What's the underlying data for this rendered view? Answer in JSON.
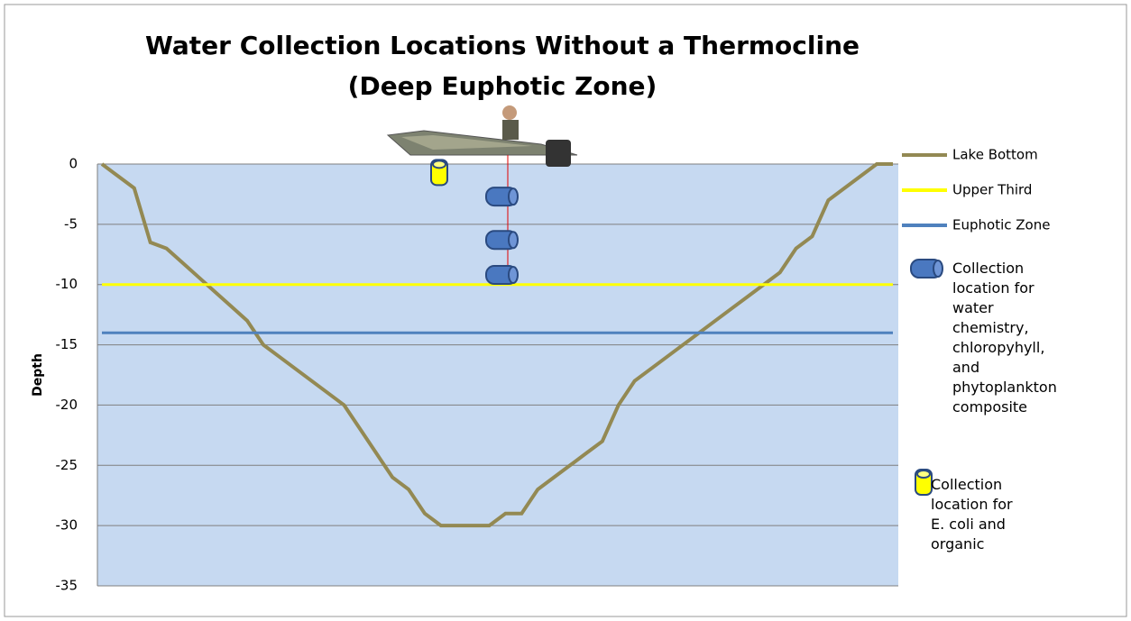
{
  "chart_data": {
    "type": "line",
    "title": [
      "Water Collection Locations Without a Thermocline",
      "(Deep Euphotic Zone)"
    ],
    "y_label": "Depth",
    "categories": [
      null,
      null,
      null,
      null,
      null,
      null,
      null,
      null,
      null,
      null,
      null,
      null,
      null,
      null,
      null,
      null,
      null,
      null,
      null,
      null,
      null,
      null,
      null,
      null,
      null,
      null,
      null,
      null,
      null,
      null,
      null,
      null,
      null,
      null,
      null,
      null,
      null,
      null,
      null,
      null,
      null,
      null,
      null,
      null,
      null,
      null,
      null,
      null,
      null,
      null
    ],
    "series": [
      {
        "name": "Lake Bottom",
        "color": "#938953",
        "values": [
          0,
          -1,
          -2,
          -6.5,
          -7,
          -8.2,
          -9.4,
          -10.6,
          -11.8,
          -13,
          -15,
          -16,
          -17,
          -18,
          -19,
          -20,
          -22,
          -24,
          -26,
          -27,
          -29,
          -30,
          -30,
          -30,
          -30,
          -29,
          -29,
          -27,
          -26,
          -25,
          -24,
          -23,
          -20,
          -18,
          -17,
          -16,
          -15,
          -14,
          -13,
          -12,
          -11,
          -10,
          -9,
          -7,
          -6,
          -3,
          -2,
          -1,
          0,
          0
        ]
      },
      {
        "name": "Upper Third",
        "color": "#ffff00",
        "values": [
          -10,
          -10,
          -10,
          -10,
          -10,
          -10,
          -10,
          -10,
          -10,
          -10,
          -10,
          -10,
          -10,
          -10,
          -10,
          -10,
          -10,
          -10,
          -10,
          -10,
          -10,
          -10,
          -10,
          -10,
          -10,
          -10,
          -10,
          -10,
          -10,
          -10,
          -10,
          -10,
          -10,
          -10,
          -10,
          -10,
          -10,
          -10,
          -10,
          -10,
          -10,
          -10,
          -10,
          -10,
          -10,
          -10,
          -10,
          -10,
          -10,
          -10
        ]
      },
      {
        "name": "Euphotic Zone",
        "color": "#4f81bd",
        "values": [
          -14,
          -14,
          -14,
          -14,
          -14,
          -14,
          -14,
          -14,
          -14,
          -14,
          -14,
          -14,
          -14,
          -14,
          -14,
          -14,
          -14,
          -14,
          -14,
          -14,
          -14,
          -14,
          -14,
          -14,
          -14,
          -14,
          -14,
          -14,
          -14,
          -14,
          -14,
          -14,
          -14,
          -14,
          -14,
          -14,
          -14,
          -14,
          -14,
          -14,
          -14,
          -14,
          -14,
          -14,
          -14,
          -14,
          -14,
          -14,
          -14,
          -14
        ]
      }
    ],
    "collection_points": [
      {
        "name": "Collection location for water chemistry, chloropyhyll, and phytoplankton composite",
        "color": "#4a78c0",
        "depths": [
          -2.7,
          -6.3,
          -9.2
        ]
      },
      {
        "name": "Collection location for E. coli and organic",
        "color": "#ffff00",
        "depths": [
          -0.7
        ]
      }
    ],
    "ylim": [
      -35,
      0
    ],
    "yticks": [
      0,
      -5,
      -10,
      -15,
      -20,
      -25,
      -30,
      -35
    ],
    "grid": true,
    "plot_background": "#c6d9f1"
  }
}
